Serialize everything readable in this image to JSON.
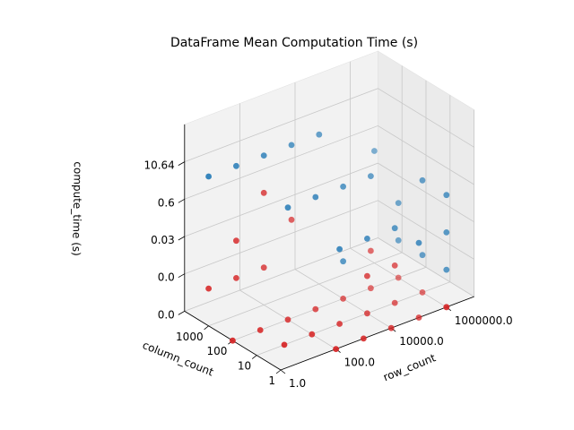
{
  "chart_data": {
    "type": "scatter",
    "projection": "3d",
    "title": "DataFrame Mean Computation Time (s)",
    "xlabel": "row_count",
    "ylabel": "column_count",
    "zlabel": "compute_time (s)",
    "x_ticks": [
      "1.0",
      "100.0",
      "10000.0",
      "1000000.0"
    ],
    "y_ticks": [
      "1",
      "10",
      "100",
      "1000"
    ],
    "z_ticks": [
      "0.0",
      "0.0",
      "0.03",
      "0.6",
      "10.64"
    ],
    "grid": true,
    "legend": "none",
    "colors": {
      "pandas": "#1f77b4",
      "other": "#d62728",
      "pane": "#f2f2f2",
      "grid": "#c8c8c8"
    },
    "series": [
      {
        "color": "#1f77b4",
        "points": [
          {
            "x": 0.0,
            "y": 3.0,
            "z": 4.0
          },
          {
            "x": 1.0,
            "y": 3.0,
            "z": 4.0
          },
          {
            "x": 2.0,
            "y": 3.0,
            "z": 4.0
          },
          {
            "x": 3.0,
            "y": 3.0,
            "z": 4.0
          },
          {
            "x": 4.0,
            "y": 3.0,
            "z": 4.0
          },
          {
            "x": 6.0,
            "y": 3.0,
            "z": 3.0
          },
          {
            "x": 2.0,
            "y": 2.0,
            "z": 3.0
          },
          {
            "x": 3.0,
            "y": 2.0,
            "z": 3.0
          },
          {
            "x": 4.0,
            "y": 2.0,
            "z": 3.0
          },
          {
            "x": 5.0,
            "y": 2.0,
            "z": 3.0
          },
          {
            "x": 6.0,
            "y": 1.0,
            "z": 3.0
          },
          {
            "x": 6.0,
            "y": 0.0,
            "z": 3.0
          },
          {
            "x": 6.0,
            "y": 0.0,
            "z": 2.0
          },
          {
            "x": 4.0,
            "y": 1.0,
            "z": 2.0
          },
          {
            "x": 3.0,
            "y": 1.0,
            "z": 2.0
          },
          {
            "x": 5.0,
            "y": 1.0,
            "z": 2.0
          },
          {
            "x": 5.0,
            "y": 0.0,
            "z": 2.0
          },
          {
            "x": 6.0,
            "y": 0.0,
            "z": 1.0
          },
          {
            "x": 6.0,
            "y": 2.0,
            "z": 2.0
          },
          {
            "x": 4.0,
            "y": 2.0,
            "z": 1.0
          },
          {
            "x": 6.0,
            "y": 2.0,
            "z": 1.0
          },
          {
            "x": 6.0,
            "y": 1.0,
            "z": 1.0
          }
        ]
      },
      {
        "color": "#d62728",
        "points": [
          {
            "x": 0.0,
            "y": 3.0,
            "z": 1.0
          },
          {
            "x": 1.0,
            "y": 3.0,
            "z": 1.0
          },
          {
            "x": 2.0,
            "y": 3.0,
            "z": 1.0
          },
          {
            "x": 0.0,
            "y": 2.0,
            "z": 0.0
          },
          {
            "x": 1.0,
            "y": 2.0,
            "z": 0.0
          },
          {
            "x": 2.0,
            "y": 2.0,
            "z": 0.0
          },
          {
            "x": 3.0,
            "y": 2.0,
            "z": 0.0
          },
          {
            "x": 4.0,
            "y": 2.0,
            "z": 0.0
          },
          {
            "x": 5.0,
            "y": 2.0,
            "z": 0.0
          },
          {
            "x": 1.0,
            "y": 1.0,
            "z": 0.0
          },
          {
            "x": 2.0,
            "y": 1.0,
            "z": 0.0
          },
          {
            "x": 3.0,
            "y": 1.0,
            "z": 0.0
          },
          {
            "x": 4.0,
            "y": 1.0,
            "z": 0.0
          },
          {
            "x": 5.0,
            "y": 1.0,
            "z": 0.0
          },
          {
            "x": 6.0,
            "y": 1.0,
            "z": 0.0
          },
          {
            "x": 2.0,
            "y": 0.0,
            "z": 0.0
          },
          {
            "x": 3.0,
            "y": 0.0,
            "z": 0.0
          },
          {
            "x": 4.0,
            "y": 0.0,
            "z": 0.0
          },
          {
            "x": 5.0,
            "y": 0.0,
            "z": 0.0
          },
          {
            "x": 6.0,
            "y": 0.0,
            "z": 0.0
          },
          {
            "x": 1.0,
            "y": 3.0,
            "z": 2.0
          },
          {
            "x": 2.0,
            "y": 3.0,
            "z": 3.0
          },
          {
            "x": 3.0,
            "y": 3.0,
            "z": 2.0
          },
          {
            "x": 5.0,
            "y": 2.0,
            "z": 1.0
          },
          {
            "x": 6.0,
            "y": 2.0,
            "z": 0.0
          },
          {
            "x": 4.0,
            "y": 1.0,
            "z": 1.0
          },
          {
            "x": 5.0,
            "y": 1.0,
            "z": 1.0
          },
          {
            "x": 6.0,
            "y": 0.0,
            "z": 0.0
          }
        ]
      }
    ]
  }
}
